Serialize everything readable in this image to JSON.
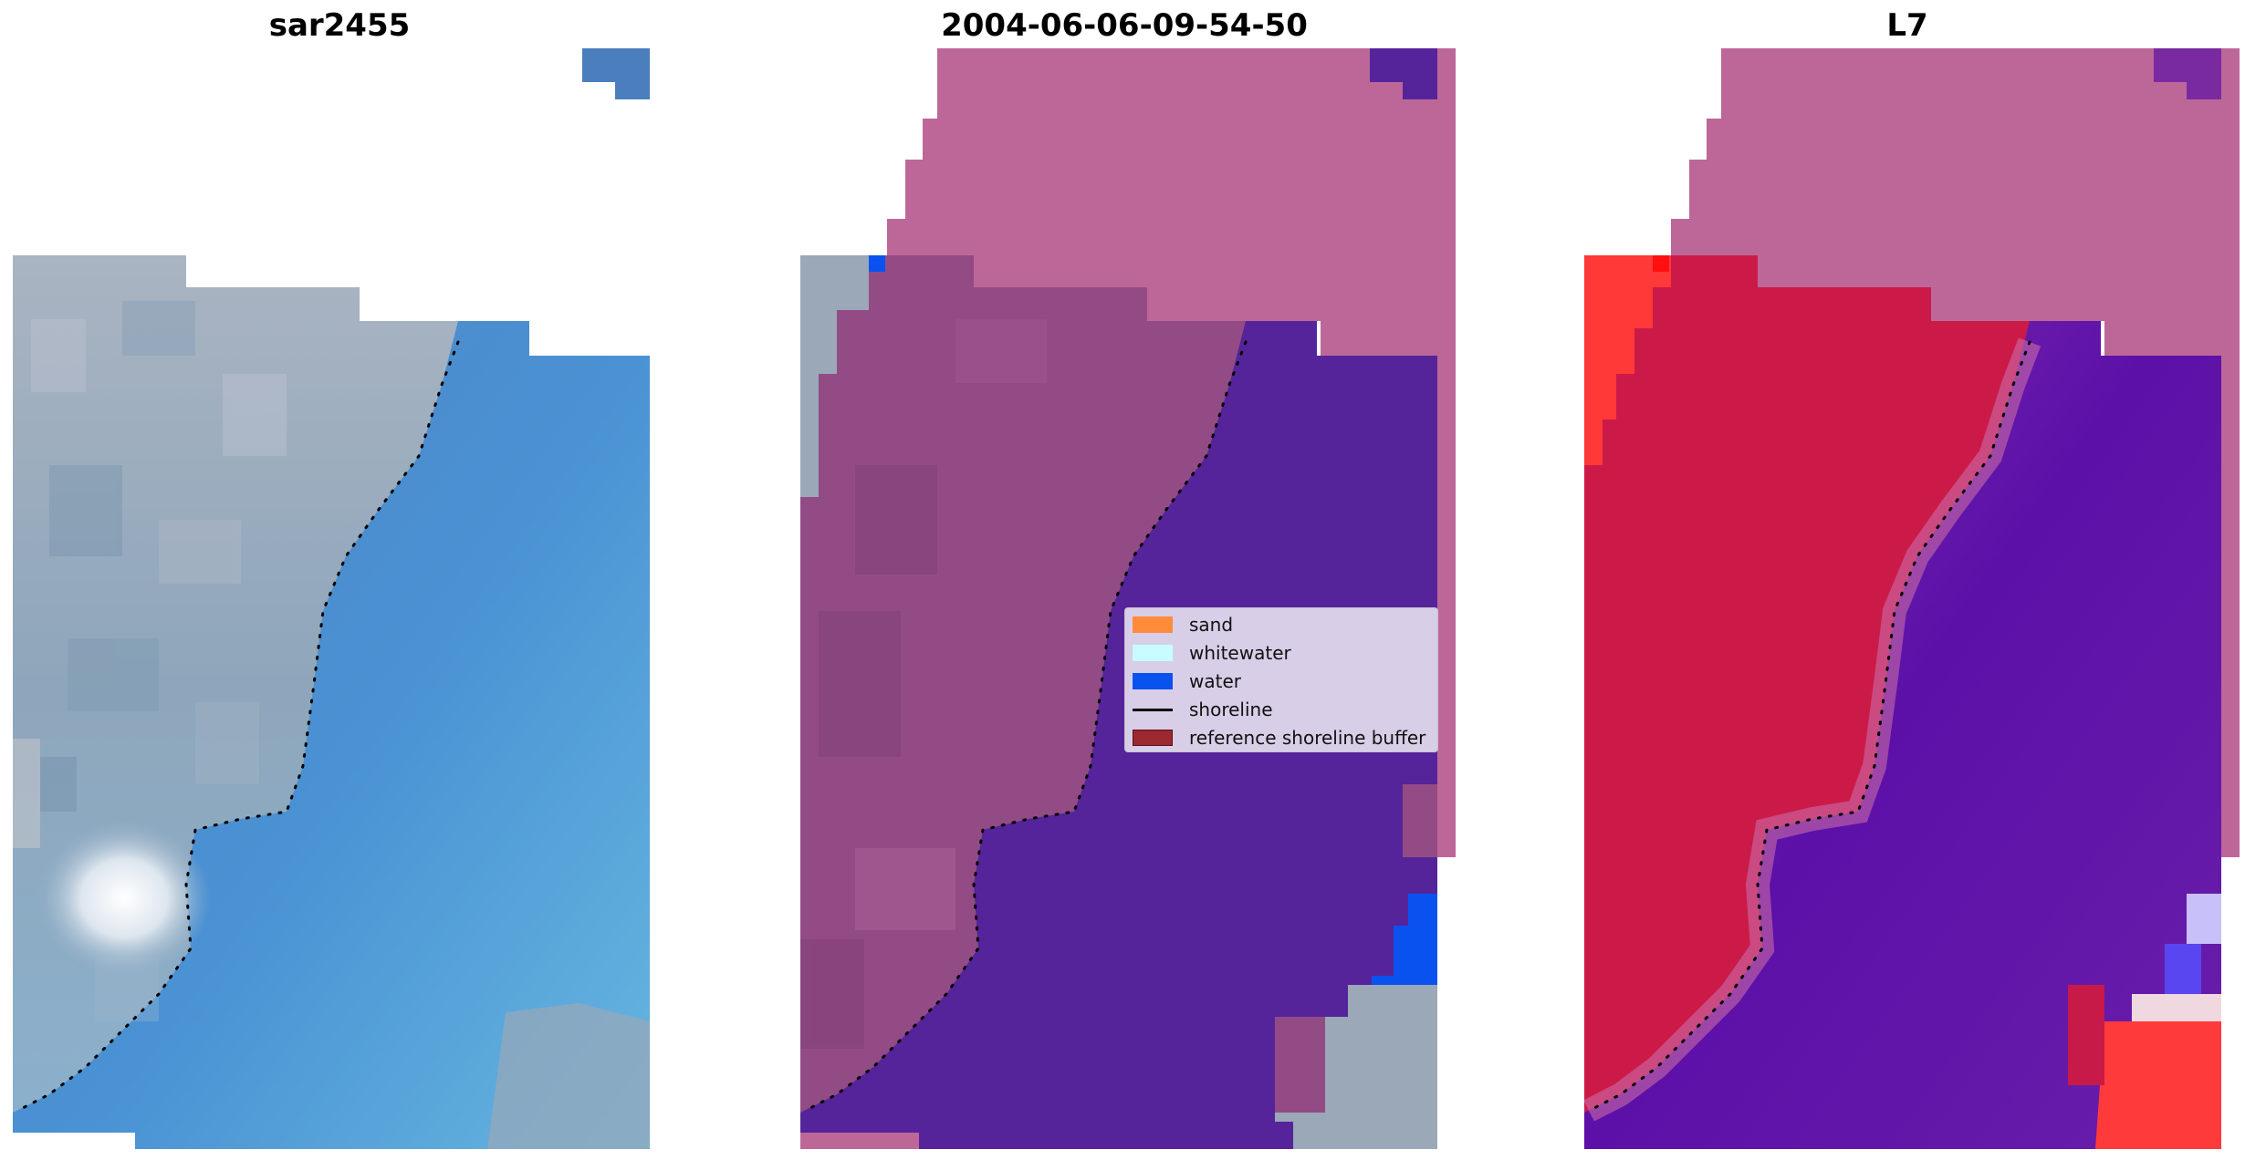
{
  "panels": {
    "left_title": "sar2455",
    "middle_title": "2004-06-06-09-54-50",
    "right_title": "L7"
  },
  "legend": {
    "items": [
      {
        "label": "sand",
        "color": "#ff8c3a"
      },
      {
        "label": "whitewater",
        "color": "#c8fcff"
      },
      {
        "label": "water",
        "color": "#0a52f0"
      },
      {
        "label": "shoreline",
        "color": "#000000"
      },
      {
        "label": "reference shoreline buffer",
        "color": "#9c2830"
      }
    ]
  },
  "colors": {
    "sand_rgb_ocean": "#4a7ebd",
    "land_grey": "#9aaab8",
    "classified_land": "#bf6898",
    "classified_water": "#55249a",
    "classified_land_dark": "#8c4a84",
    "index_red": "#cc1a44",
    "index_purple": "#7a2eae",
    "index_bright_red": "#ff3a3a"
  }
}
